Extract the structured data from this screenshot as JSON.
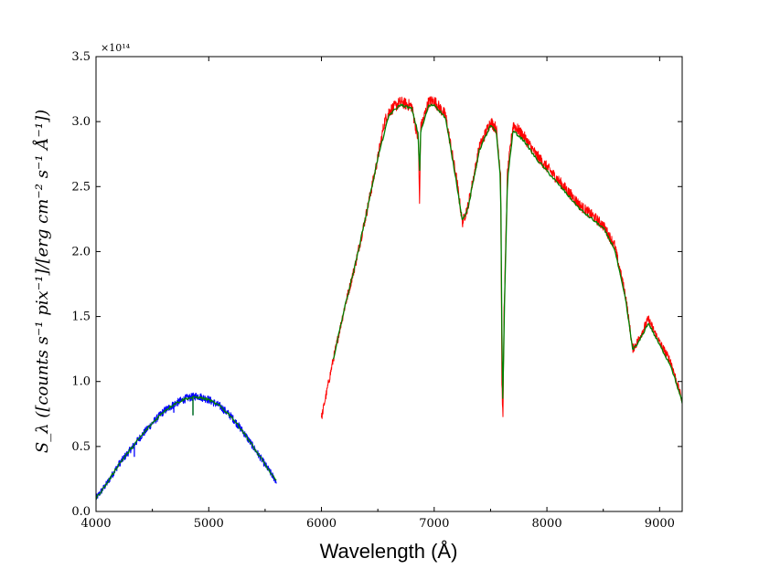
{
  "chart_data": {
    "type": "line",
    "xlabel": "Wavelength (Å)",
    "ylabel": "S_λ ([counts s⁻¹ pix⁻¹]/[erg cm⁻² s⁻¹ Å⁻¹])",
    "y_multiplier": "×10¹⁴",
    "xlim": [
      4000,
      9200
    ],
    "ylim": [
      0.0,
      3.5
    ],
    "x_ticks": [
      "4000",
      "5000",
      "6000",
      "7000",
      "8000",
      "9000"
    ],
    "y_ticks": [
      "0.0",
      "0.5",
      "1.0",
      "1.5",
      "2.0",
      "2.5",
      "3.0",
      "3.5"
    ],
    "grid": false,
    "series": [
      {
        "color": "#0000ff",
        "style": "noisy",
        "x": [
          4000,
          4100,
          4200,
          4300,
          4400,
          4500,
          4600,
          4700,
          4800,
          4900,
          5000,
          5100,
          5200,
          5300,
          5400,
          5500,
          5600
        ],
        "y": [
          0.1,
          0.22,
          0.36,
          0.47,
          0.58,
          0.68,
          0.77,
          0.83,
          0.87,
          0.89,
          0.86,
          0.81,
          0.73,
          0.62,
          0.49,
          0.36,
          0.23
        ],
        "spikes": [
          [
            4340,
            0.42
          ],
          [
            4690,
            0.76
          ],
          [
            4860,
            0.74
          ]
        ]
      },
      {
        "color": "#ff0000",
        "style": "noisy",
        "x": [
          6000,
          6100,
          6200,
          6300,
          6400,
          6500,
          6560,
          6600,
          6700,
          6800,
          6860,
          6870,
          6880,
          6950,
          7000,
          7100,
          7200,
          7250,
          7300,
          7400,
          7500,
          7550,
          7590,
          7600,
          7610,
          7620,
          7650,
          7700,
          7800,
          7900,
          8000,
          8100,
          8200,
          8300,
          8400,
          8500,
          8600,
          8700,
          8760,
          8800,
          8900,
          9000,
          9100,
          9200
        ],
        "y": [
          0.72,
          1.15,
          1.55,
          1.9,
          2.3,
          2.72,
          3.0,
          3.08,
          3.15,
          3.12,
          2.85,
          2.35,
          2.95,
          3.15,
          3.16,
          3.05,
          2.55,
          2.22,
          2.35,
          2.8,
          3.0,
          2.95,
          2.6,
          1.0,
          0.7,
          1.55,
          2.6,
          2.98,
          2.88,
          2.75,
          2.65,
          2.55,
          2.45,
          2.35,
          2.28,
          2.2,
          2.05,
          1.65,
          1.25,
          1.3,
          1.48,
          1.3,
          1.15,
          0.85
        ]
      },
      {
        "color": "#008000",
        "style": "smooth",
        "x": [
          4000,
          4100,
          4200,
          4300,
          4400,
          4500,
          4600,
          4700,
          4800,
          4900,
          5000,
          5100,
          5200,
          5300,
          5400,
          5500,
          5600,
          6000,
          6100,
          6200,
          6300,
          6400,
          6500,
          6560,
          6600,
          6700,
          6800,
          6860,
          6870,
          6880,
          6950,
          7000,
          7100,
          7200,
          7250,
          7300,
          7400,
          7500,
          7550,
          7590,
          7600,
          7610,
          7620,
          7650,
          7700,
          7800,
          7900,
          8000,
          8100,
          8200,
          8300,
          8400,
          8500,
          8600,
          8700,
          8760,
          8800,
          8900,
          9000,
          9100,
          9200
        ],
        "y": [
          0.1,
          0.22,
          0.36,
          0.47,
          0.58,
          0.68,
          0.77,
          0.83,
          0.87,
          0.88,
          0.86,
          0.81,
          0.73,
          0.62,
          0.49,
          0.36,
          0.23,
          null,
          1.15,
          1.55,
          1.9,
          2.3,
          2.72,
          2.92,
          3.05,
          3.13,
          3.1,
          2.9,
          2.55,
          2.92,
          3.12,
          3.13,
          3.03,
          2.52,
          2.24,
          2.33,
          2.78,
          2.97,
          2.92,
          2.55,
          1.4,
          0.75,
          1.45,
          2.55,
          2.93,
          2.85,
          2.72,
          2.62,
          2.52,
          2.42,
          2.32,
          2.25,
          2.18,
          2.02,
          1.62,
          1.25,
          1.28,
          1.45,
          1.28,
          1.12,
          0.84
        ],
        "spikes": [
          [
            4860,
            0.74
          ]
        ]
      }
    ]
  }
}
